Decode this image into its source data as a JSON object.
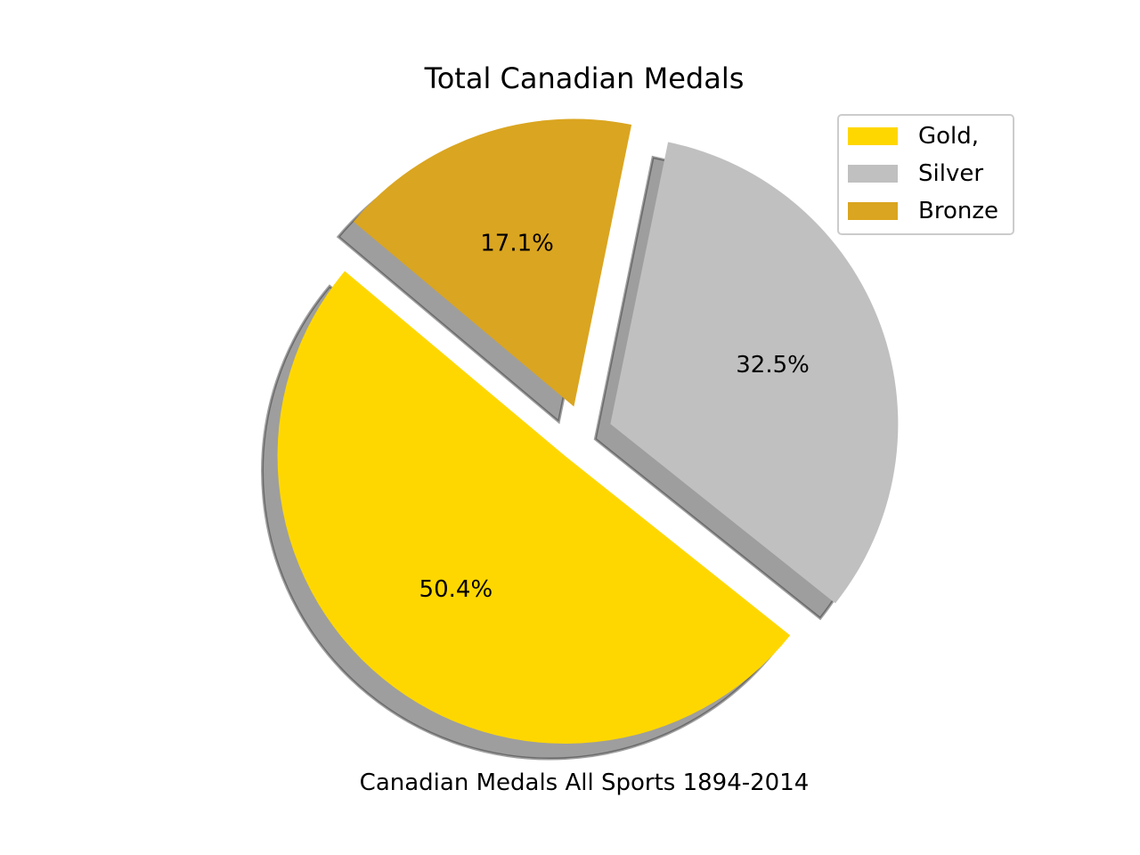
{
  "chart_data": {
    "type": "pie",
    "title": "Total Canadian Medals",
    "xlabel": "Canadian Medals All Sports 1894-2014",
    "slices": [
      {
        "label": "Gold,",
        "percent": 50.4,
        "color": "#FFD700",
        "exploded": true
      },
      {
        "label": "Silver",
        "percent": 32.5,
        "color": "#C0C0C0",
        "exploded": true
      },
      {
        "label": "Bronze",
        "percent": 17.1,
        "color": "#DAA520",
        "exploded": true
      }
    ],
    "percent_labels": [
      "50.4%",
      "32.5%",
      "17.1%"
    ],
    "shadow": true,
    "legend_position": "top-right"
  }
}
